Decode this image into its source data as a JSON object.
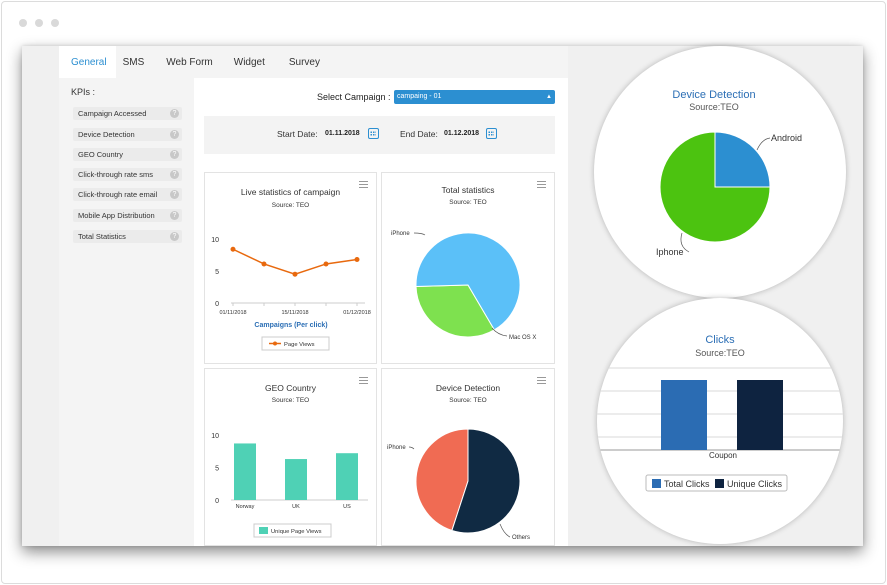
{
  "tabs": [
    "General",
    "SMS",
    "Web Form",
    "Widget",
    "Survey"
  ],
  "sidebar": {
    "title": "KPIs :",
    "items": [
      "Campaign Accessed",
      "Device Detection",
      "GEO Country",
      "Click-through rate sms",
      "Click-through rate email",
      "Mobile App Distribution",
      "Total Statistics"
    ],
    "help_glyph": "?"
  },
  "campaign": {
    "label": "Select Campaign :",
    "value": "campaing - 01"
  },
  "dates": {
    "start_label": "Start Date:",
    "start_value": "01.11.2018",
    "end_label": "End Date:",
    "end_value": "01.12.2018"
  },
  "colors": {
    "accent": "#2c8fd1",
    "orange": "#e8690e",
    "teal": "#4fd1b5",
    "green": "#7ee14f",
    "lightblue": "#5bc0f8",
    "salmon": "#f06b53",
    "navy": "#102a43"
  },
  "chart_data": [
    {
      "type": "line",
      "title": "Live statistics of campaign",
      "subtitle": "Source: TEO",
      "x": [
        "01/11/2018",
        "",
        "15/11/2018",
        "",
        "01/12/2018"
      ],
      "series": [
        {
          "name": "Page Views",
          "values": [
            8.4,
            6.1,
            4.5,
            6.1,
            6.8
          ]
        }
      ],
      "xlabel": "Campaigns (Per click)",
      "yticks": [
        "10",
        "5",
        "0"
      ],
      "ylim": [
        0,
        10
      ]
    },
    {
      "type": "pie",
      "title": "Total statistics",
      "subtitle": "Source: TEO",
      "labels": [
        "iPhone",
        "Mac OS X"
      ],
      "values": [
        33,
        67
      ]
    },
    {
      "type": "bar",
      "title": "GEO Country",
      "subtitle": "Source: TEO",
      "categories": [
        "Norway",
        "UK",
        "US"
      ],
      "series": [
        {
          "name": "Unique Page Views",
          "values": [
            8.7,
            6.3,
            7.2
          ]
        }
      ],
      "yticks": [
        "10",
        "5",
        "0"
      ],
      "ylim": [
        0,
        10
      ]
    },
    {
      "type": "pie",
      "title": "Device Detection",
      "subtitle": "Source: TEO",
      "labels": [
        "iPhone",
        "Others"
      ],
      "values": [
        45,
        55
      ]
    },
    {
      "type": "pie",
      "title": "Device Detection",
      "subtitle": "Source:TEO",
      "labels": [
        "Android",
        "Iphone"
      ],
      "values": [
        25,
        75
      ]
    },
    {
      "type": "bar",
      "title": "Clicks",
      "subtitle": "Source:TEO",
      "categories": [
        "Coupon"
      ],
      "series": [
        {
          "name": "Total Clicks",
          "values": [
            10
          ]
        },
        {
          "name": "Unique Clicks",
          "values": [
            10
          ]
        }
      ]
    }
  ]
}
